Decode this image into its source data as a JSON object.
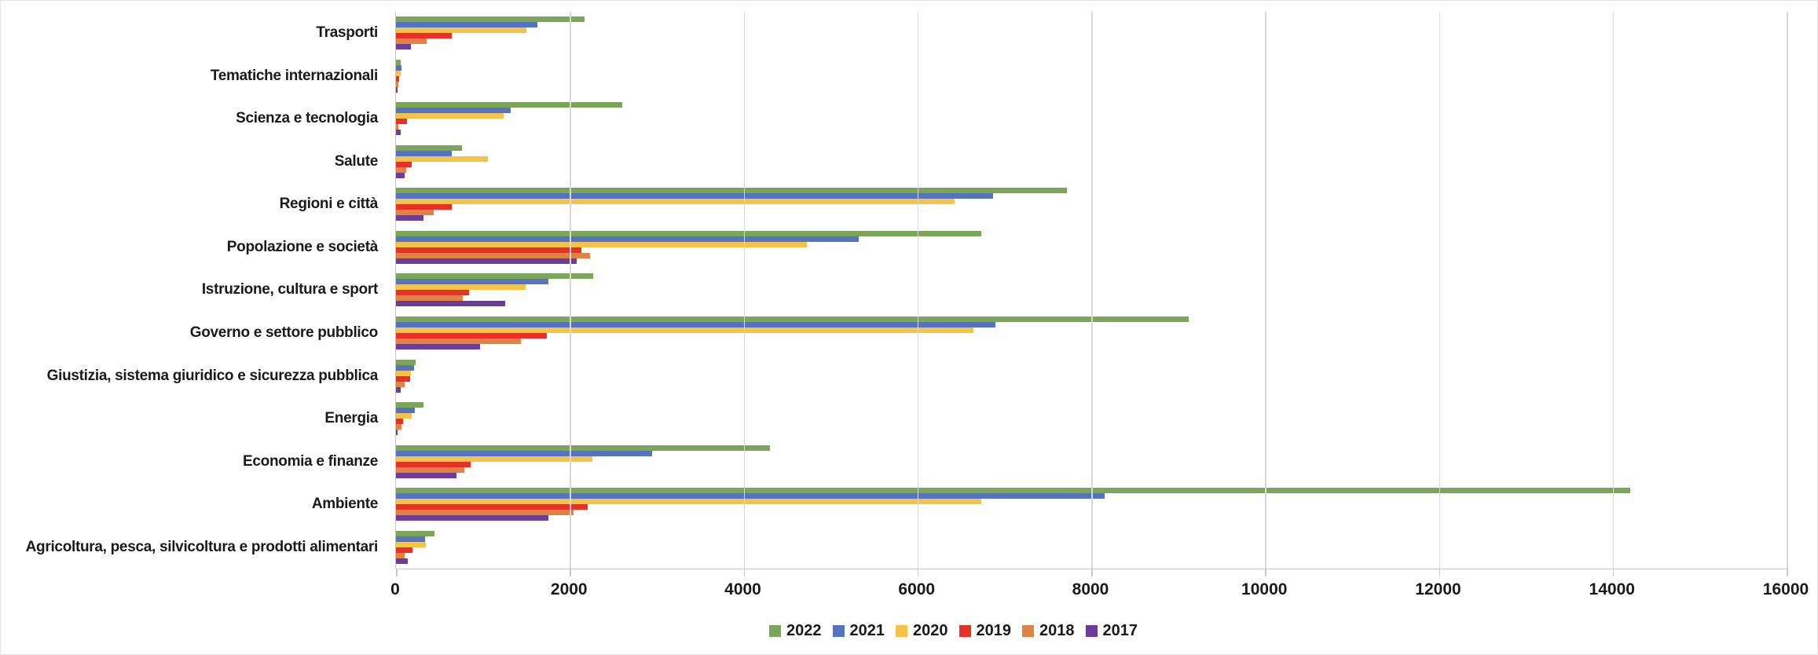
{
  "chart_data": {
    "type": "bar",
    "orientation": "horizontal",
    "title": "",
    "xlabel": "",
    "ylabel": "",
    "categories": [
      "Trasporti",
      "Tematiche internazionali",
      "Scienza e tecnologia",
      "Salute",
      "Regioni e città",
      "Popolazione e società",
      "Istruzione, cultura e sport",
      "Governo e settore pubblico",
      "Giustizia, sistema giuridico e sicurezza pubblica",
      "Energia",
      "Economia e finanze",
      "Ambiente",
      "Agricoltura, pesca, silvicoltura e prodotti alimentari"
    ],
    "series": [
      {
        "name": "2022",
        "color": "#7BA65A",
        "values": [
          2170,
          50,
          2600,
          760,
          7720,
          6730,
          2270,
          9120,
          230,
          320,
          4300,
          14200,
          440
        ]
      },
      {
        "name": "2021",
        "color": "#5573BE",
        "values": [
          1630,
          65,
          1320,
          645,
          6870,
          5320,
          1750,
          6900,
          210,
          215,
          2950,
          8150,
          335
        ]
      },
      {
        "name": "2020",
        "color": "#F6C34A",
        "values": [
          1500,
          50,
          1240,
          1055,
          6430,
          4730,
          1490,
          6640,
          170,
          180,
          2260,
          6730,
          345
        ]
      },
      {
        "name": "2019",
        "color": "#E73128",
        "values": [
          640,
          40,
          125,
          185,
          645,
          2130,
          840,
          1740,
          165,
          80,
          855,
          2210,
          190
        ]
      },
      {
        "name": "2018",
        "color": "#E08145",
        "values": [
          350,
          25,
          30,
          120,
          430,
          2230,
          765,
          1440,
          100,
          60,
          790,
          2040,
          100
        ]
      },
      {
        "name": "2017",
        "color": "#6B3D98",
        "values": [
          175,
          15,
          55,
          100,
          320,
          2075,
          1260,
          970,
          57,
          20,
          700,
          1750,
          135
        ]
      }
    ],
    "xlim": [
      0,
      16000
    ],
    "xticks": [
      0,
      2000,
      4000,
      6000,
      8000,
      10000,
      12000,
      14000,
      16000
    ],
    "grid": true,
    "gridline_color": "#D9D9D9",
    "axis_color": "#C9C9C9",
    "legend_position": "bottom",
    "legend_labels": [
      "2022",
      "2021",
      "2020",
      "2019",
      "2018",
      "2017"
    ]
  }
}
